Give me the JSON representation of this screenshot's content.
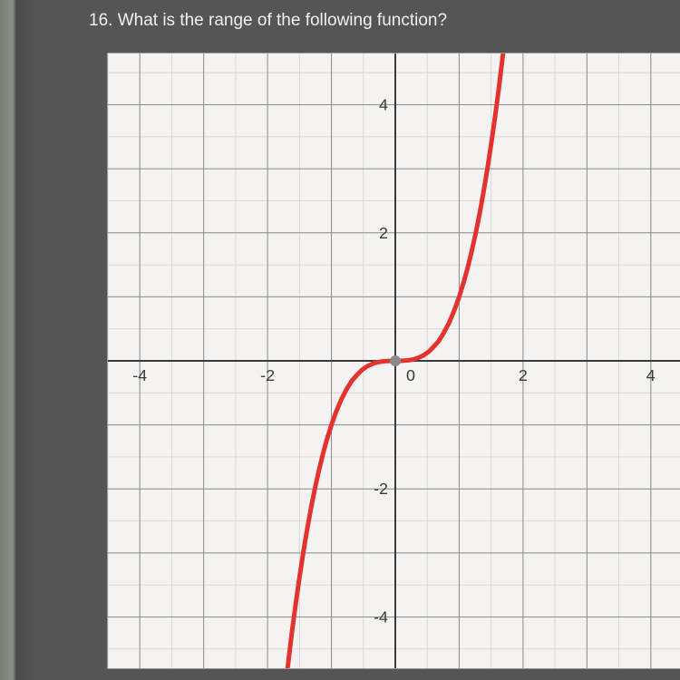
{
  "question": {
    "number": "16.",
    "text": "What is the range of the following function?"
  },
  "chart": {
    "type": "line",
    "background_color": "#f4f3f1",
    "minor_grid_color": "#d9d8d6",
    "major_grid_color": "#8e8e8e",
    "axis_color": "#3a3a3a",
    "curve_color": "#e4322e",
    "curve_width": 5,
    "origin_dot_color": "#8a8a8a",
    "xlim": [
      -4.5,
      4.5
    ],
    "ylim": [
      -4.8,
      4.8
    ],
    "xticks": [
      -4,
      -2,
      0,
      2,
      4
    ],
    "yticks": [
      -4,
      -2,
      2,
      4
    ],
    "xtick_labels": [
      "-4",
      "-2",
      "0",
      "2",
      "4"
    ],
    "ytick_labels": [
      "-4",
      "-2",
      "2",
      "4"
    ],
    "minor_step": 0.5,
    "label_fontsize": 18,
    "curve_points": [
      [
        -1.71,
        -5.0
      ],
      [
        -1.67,
        -4.66
      ],
      [
        -1.62,
        -4.25
      ],
      [
        -1.56,
        -3.8
      ],
      [
        -1.5,
        -3.38
      ],
      [
        -1.44,
        -2.99
      ],
      [
        -1.38,
        -2.63
      ],
      [
        -1.32,
        -2.3
      ],
      [
        -1.26,
        -2.0
      ],
      [
        -1.2,
        -1.73
      ],
      [
        -1.14,
        -1.48
      ],
      [
        -1.08,
        -1.26
      ],
      [
        -1.0,
        -1.0
      ],
      [
        -0.92,
        -0.78
      ],
      [
        -0.84,
        -0.59
      ],
      [
        -0.76,
        -0.44
      ],
      [
        -0.68,
        -0.31
      ],
      [
        -0.6,
        -0.22
      ],
      [
        -0.52,
        -0.14
      ],
      [
        -0.44,
        -0.085
      ],
      [
        -0.36,
        -0.047
      ],
      [
        -0.28,
        -0.022
      ],
      [
        -0.2,
        -0.008
      ],
      [
        -0.1,
        -0.001
      ],
      [
        0.0,
        0.0
      ],
      [
        0.1,
        0.001
      ],
      [
        0.2,
        0.008
      ],
      [
        0.28,
        0.022
      ],
      [
        0.36,
        0.047
      ],
      [
        0.44,
        0.085
      ],
      [
        0.52,
        0.14
      ],
      [
        0.6,
        0.22
      ],
      [
        0.68,
        0.31
      ],
      [
        0.76,
        0.44
      ],
      [
        0.84,
        0.59
      ],
      [
        0.92,
        0.78
      ],
      [
        1.0,
        1.0
      ],
      [
        1.08,
        1.26
      ],
      [
        1.14,
        1.48
      ],
      [
        1.2,
        1.73
      ],
      [
        1.26,
        2.0
      ],
      [
        1.32,
        2.3
      ],
      [
        1.38,
        2.63
      ],
      [
        1.44,
        2.99
      ],
      [
        1.5,
        3.38
      ],
      [
        1.56,
        3.8
      ],
      [
        1.62,
        4.25
      ],
      [
        1.67,
        4.66
      ],
      [
        1.71,
        5.0
      ]
    ]
  }
}
